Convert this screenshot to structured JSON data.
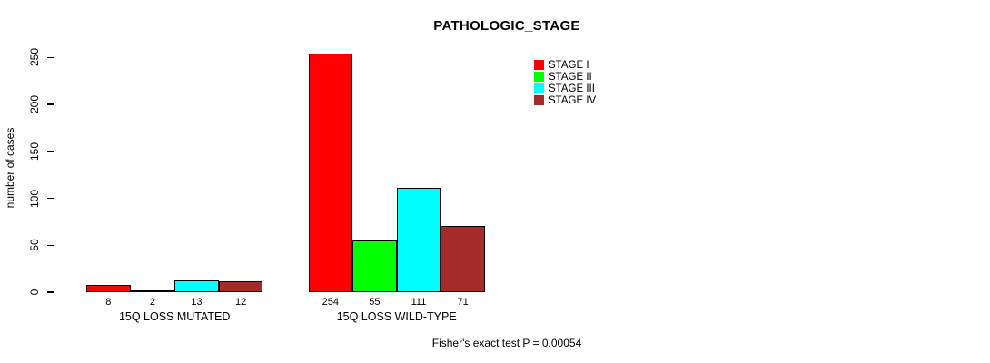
{
  "chart_data": {
    "type": "bar",
    "title": "PATHOLOGIC_STAGE",
    "ylabel": "number of cases",
    "ylim": [
      0,
      250
    ],
    "yticks": [
      0,
      50,
      100,
      150,
      200,
      250
    ],
    "grid": false,
    "legend_position": "top-right",
    "categories": [
      "15Q LOSS MUTATED",
      "15Q LOSS WILD-TYPE"
    ],
    "groups": [
      {
        "label": "15Q LOSS MUTATED",
        "values": [
          8,
          2,
          13,
          12
        ]
      },
      {
        "label": "15Q LOSS WILD-TYPE",
        "values": [
          254,
          55,
          111,
          71
        ]
      }
    ],
    "series": [
      {
        "name": "STAGE I",
        "color": "#ff0000",
        "values": [
          8,
          254
        ]
      },
      {
        "name": "STAGE II",
        "color": "#00ff00",
        "values": [
          2,
          55
        ]
      },
      {
        "name": "STAGE III",
        "color": "#00ffff",
        "values": [
          13,
          111
        ]
      },
      {
        "name": "STAGE IV",
        "color": "#a52a2a",
        "values": [
          12,
          71
        ]
      }
    ],
    "annotation": "Fisher's exact test P = 0.00054"
  }
}
